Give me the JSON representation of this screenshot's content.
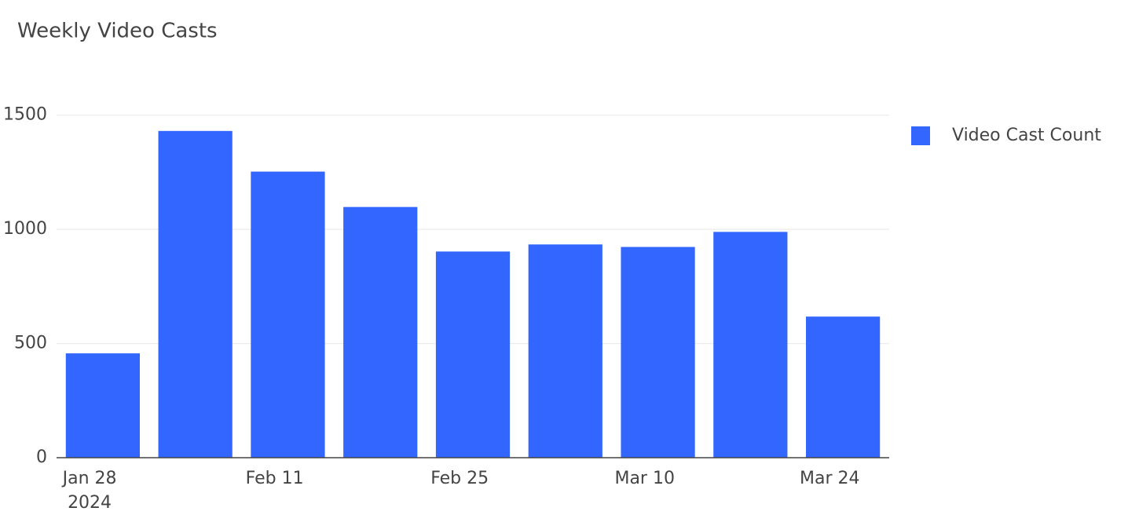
{
  "chart_data": {
    "type": "bar",
    "title": "Weekly Video Casts",
    "x": [
      "2024-01-29",
      "2024-02-05",
      "2024-02-12",
      "2024-02-19",
      "2024-02-26",
      "2024-03-04",
      "2024-03-11",
      "2024-03-18",
      "2024-03-25"
    ],
    "series": [
      {
        "name": "Video Cast Count",
        "color": "#3366ff",
        "values": [
          457,
          1431,
          1253,
          1098,
          903,
          934,
          923,
          989,
          618
        ]
      }
    ],
    "xlim": [
      "2024-01-25T12:00Z",
      "2024-03-28T12:00Z"
    ],
    "xticks": [
      {
        "value": "2024-01-28",
        "label": "Jan 28\n2024"
      },
      {
        "value": "2024-02-11",
        "label": "Feb 11"
      },
      {
        "value": "2024-02-25",
        "label": "Feb 25"
      },
      {
        "value": "2024-03-10",
        "label": "Mar 10"
      },
      {
        "value": "2024-03-24",
        "label": "Mar 24"
      }
    ],
    "ylim": [
      0,
      1506
    ],
    "yticks": [
      0,
      500,
      1000,
      1500
    ],
    "grid": true,
    "legend": "right"
  }
}
